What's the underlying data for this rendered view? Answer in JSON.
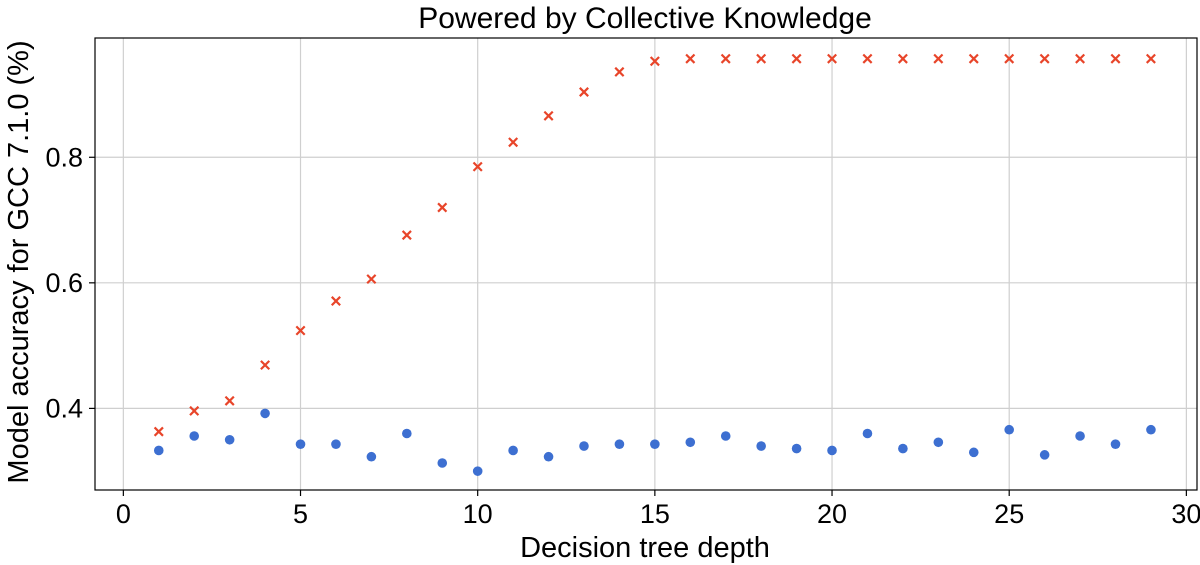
{
  "chart_data": {
    "type": "scatter",
    "title": "Powered by Collective Knowledge",
    "xlabel": "Decision tree depth",
    "ylabel": "Model accuracy for GCC 7.1.0 (%)",
    "xlim": [
      -0.8,
      30.3
    ],
    "ylim": [
      0.27,
      0.99
    ],
    "xticks": [
      0,
      5,
      10,
      15,
      20,
      25,
      30
    ],
    "yticks": [
      0.4,
      0.6,
      0.8
    ],
    "ytick_labels": [
      "0.4",
      "0.6",
      "0.8"
    ],
    "grid": true,
    "series": [
      {
        "marker": "x",
        "color": "#e8452a",
        "x": [
          1,
          2,
          3,
          4,
          5,
          6,
          7,
          8,
          9,
          10,
          11,
          12,
          13,
          14,
          15,
          16,
          17,
          18,
          19,
          20,
          21,
          22,
          23,
          24,
          25,
          26,
          27,
          28,
          29
        ],
        "values": [
          0.363,
          0.396,
          0.412,
          0.469,
          0.524,
          0.571,
          0.606,
          0.676,
          0.72,
          0.785,
          0.824,
          0.866,
          0.904,
          0.936,
          0.953,
          0.957,
          0.957,
          0.957,
          0.957,
          0.957,
          0.957,
          0.957,
          0.957,
          0.957,
          0.957,
          0.957,
          0.957,
          0.957,
          0.957
        ]
      },
      {
        "marker": "o",
        "color": "#3d6fd1",
        "x": [
          1,
          2,
          3,
          4,
          5,
          6,
          7,
          8,
          9,
          10,
          11,
          12,
          13,
          14,
          15,
          16,
          17,
          18,
          19,
          20,
          21,
          22,
          23,
          24,
          25,
          26,
          27,
          28,
          29
        ],
        "values": [
          0.333,
          0.356,
          0.35,
          0.392,
          0.343,
          0.343,
          0.323,
          0.36,
          0.313,
          0.3,
          0.333,
          0.323,
          0.34,
          0.343,
          0.343,
          0.346,
          0.356,
          0.34,
          0.336,
          0.333,
          0.36,
          0.336,
          0.346,
          0.33,
          0.366,
          0.326,
          0.356,
          0.343,
          0.366
        ]
      }
    ]
  }
}
